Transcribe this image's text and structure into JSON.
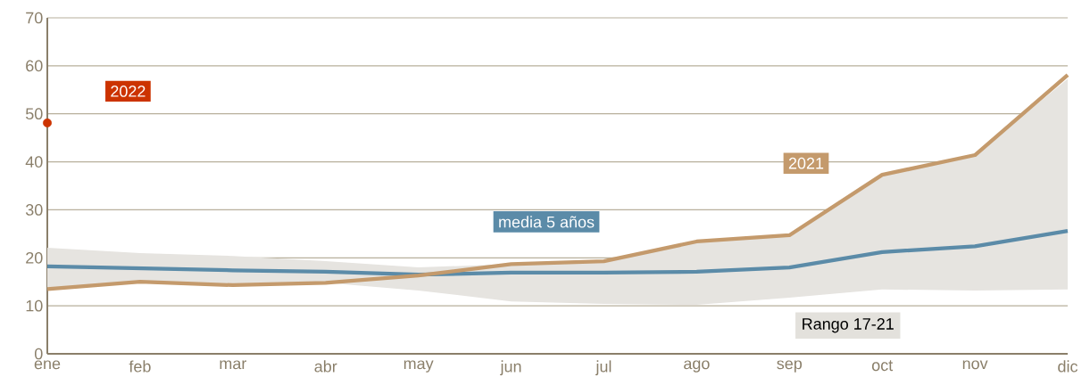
{
  "chart_data": {
    "type": "line",
    "categories": [
      "ene",
      "feb",
      "mar",
      "abr",
      "may",
      "jun",
      "jul",
      "ago",
      "sep",
      "oct",
      "nov",
      "dic"
    ],
    "series": [
      {
        "name": "media 5 años",
        "color": "#5b8ba8",
        "values": [
          18.2,
          17.8,
          17.4,
          17.1,
          16.5,
          16.9,
          16.9,
          17.1,
          18.0,
          21.2,
          22.4,
          25.6
        ],
        "lower": [
          13.5,
          15.0,
          14.3,
          14.8,
          13.2,
          10.9,
          10.4,
          10.2,
          11.7,
          13.4,
          13.2,
          13.4
        ],
        "upper": [
          22.1,
          21.0,
          20.4,
          19.3,
          18.0,
          18.7,
          19.5,
          23.4,
          24.7,
          37.3,
          41.4,
          57.3
        ]
      },
      {
        "name": "2021",
        "color": "#c49a6c",
        "values": [
          13.5,
          15.0,
          14.3,
          14.8,
          16.3,
          18.7,
          19.3,
          23.4,
          24.7,
          37.3,
          41.4,
          58.1
        ]
      },
      {
        "name": "2022",
        "type": "scatter",
        "color": "#cc3300",
        "marker": "circle",
        "values": [
          48.1,
          null,
          null,
          null,
          null,
          null,
          null,
          null,
          null,
          null,
          null,
          null
        ]
      }
    ],
    "annotations": [
      "Rango 17-21"
    ],
    "ylim": [
      0,
      70
    ],
    "yticks": [
      0,
      10,
      20,
      30,
      40,
      50,
      60,
      70
    ],
    "grid": "y",
    "legend": false
  }
}
